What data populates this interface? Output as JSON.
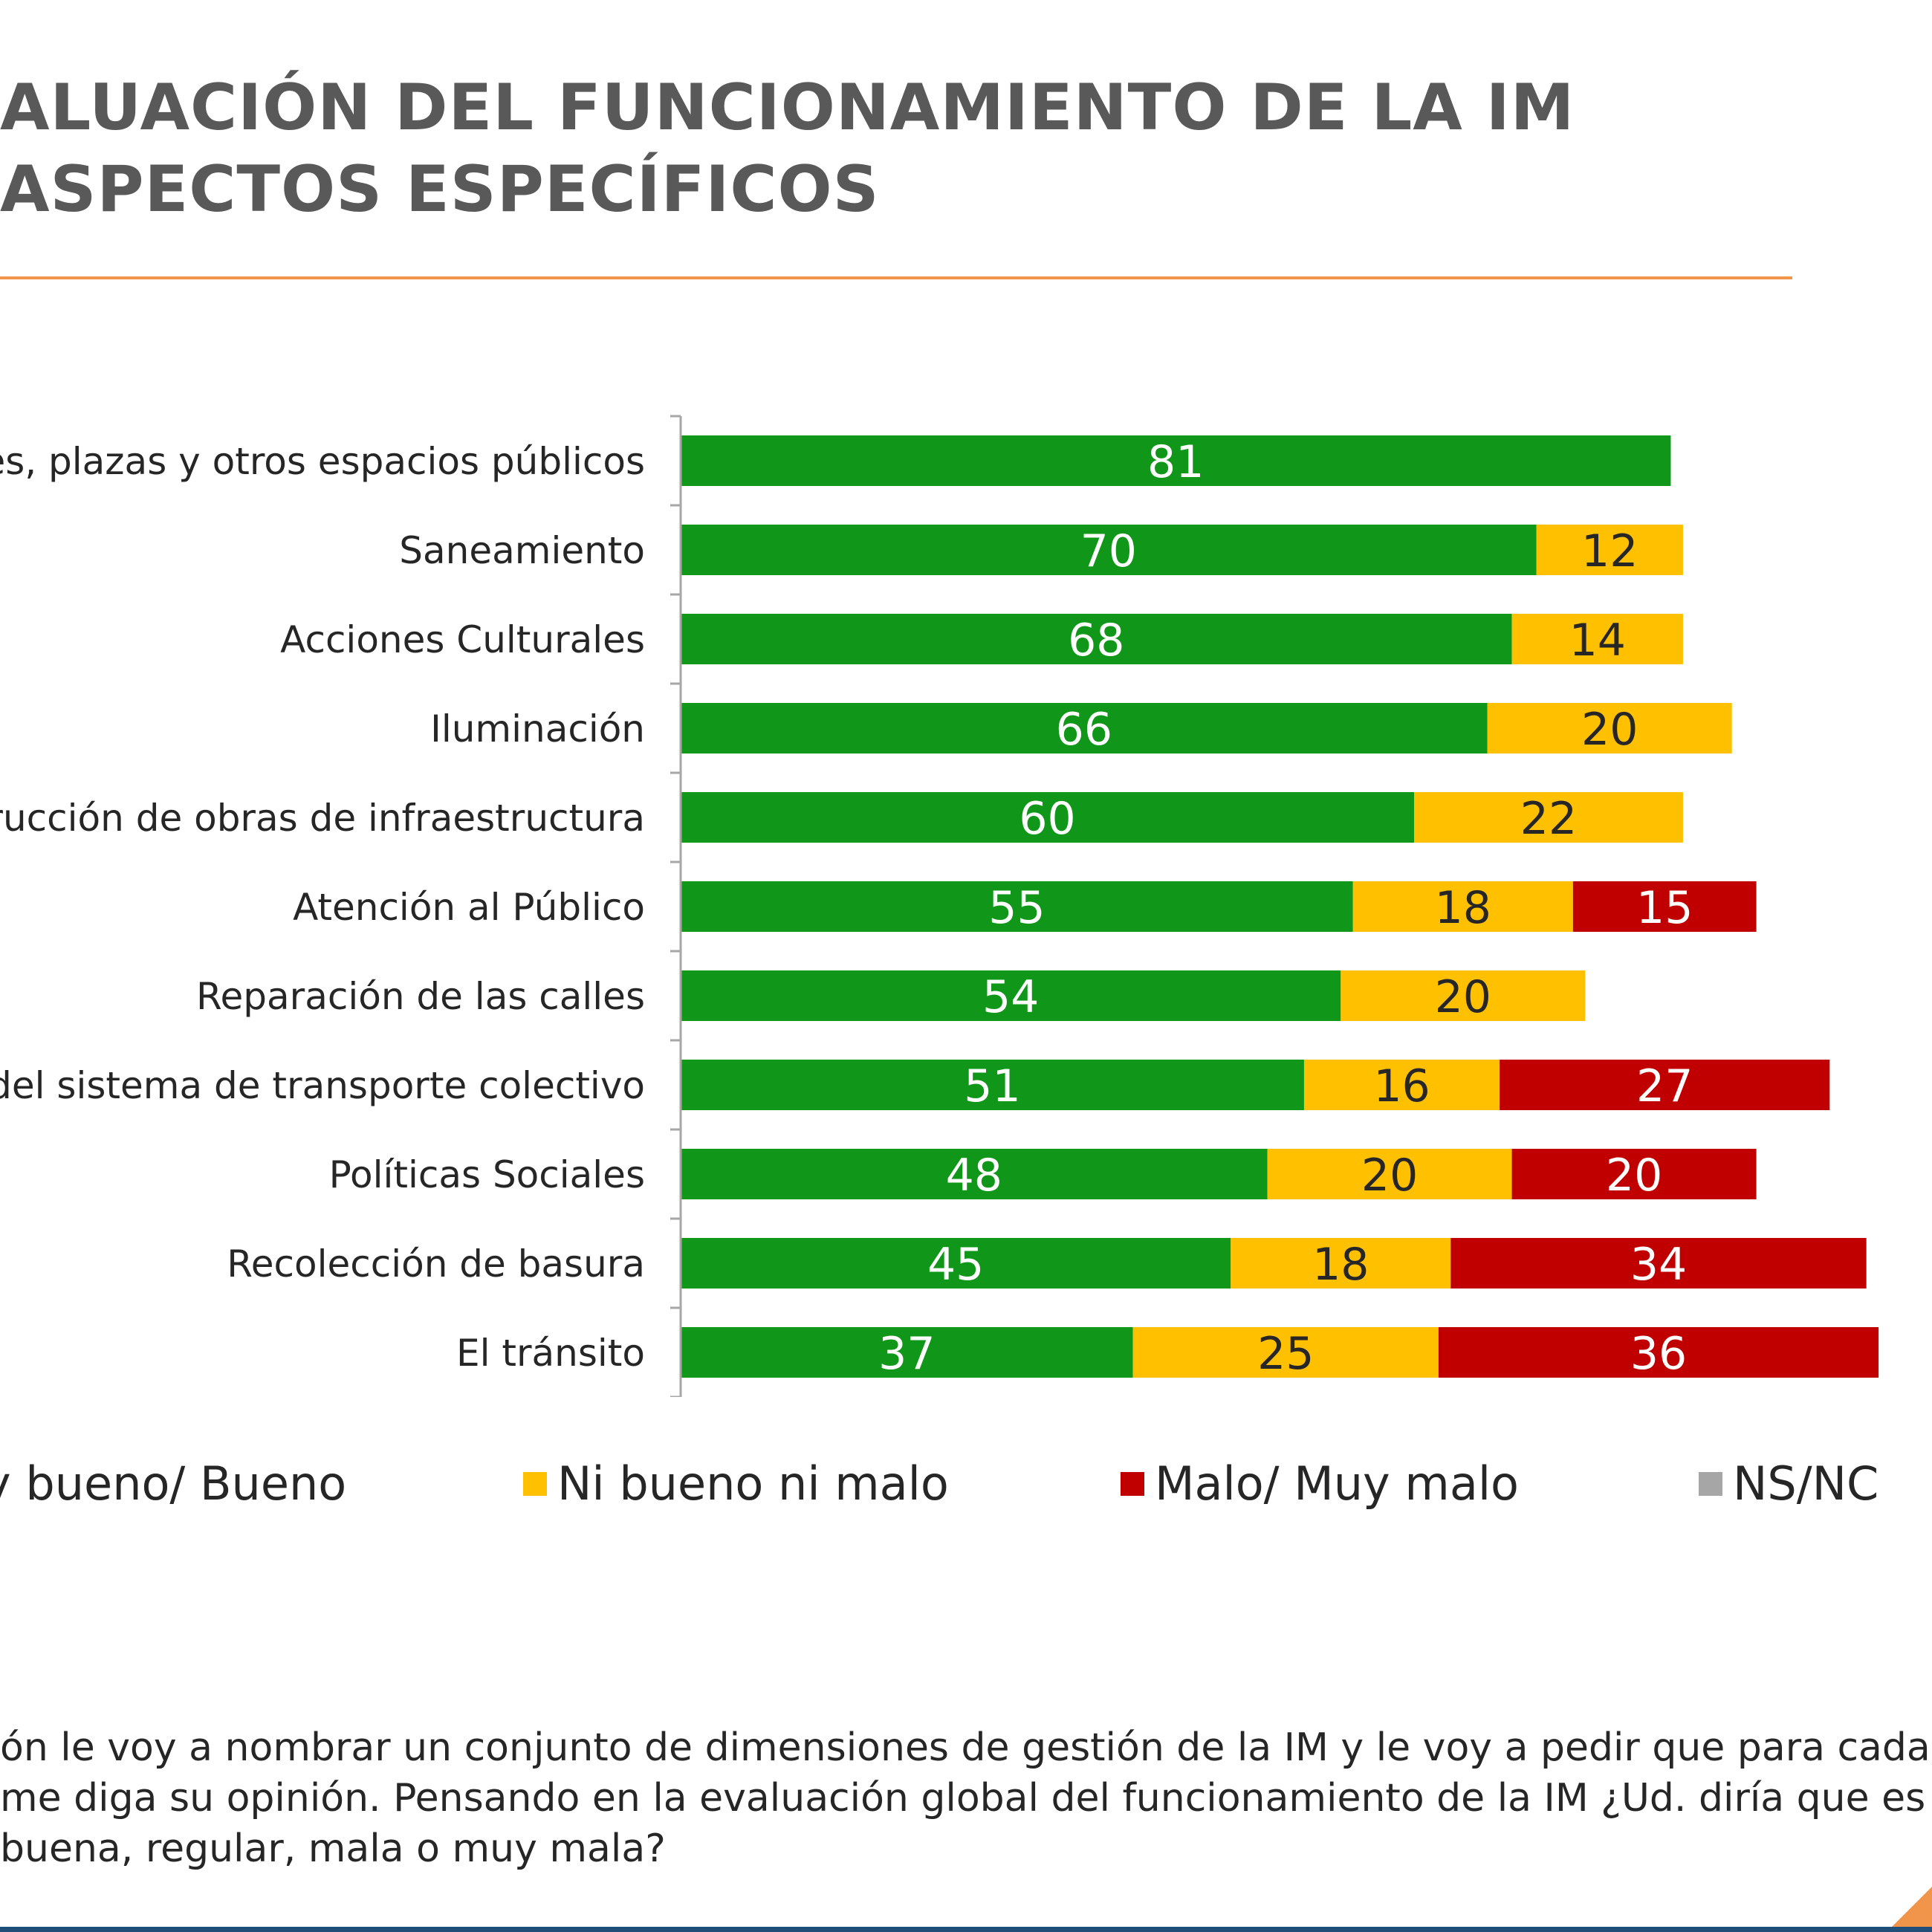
{
  "title": {
    "line1": "ALUACIÓN DEL FUNCIONAMIENTO DE LA IM",
    "line2": "ASPECTOS ESPECÍFICOS"
  },
  "chart_data": {
    "type": "bar",
    "orientation": "horizontal",
    "stacked": true,
    "categories": [
      "ues, plazas y otros espacios públicos",
      "Saneamiento",
      "Acciones Culturales",
      "Iluminación",
      "strucción de obras de infraestructura",
      "Atención al Público",
      "Reparación de las calles",
      "to del sistema de transporte colectivo",
      "Políticas Sociales",
      "Recolección de basura",
      "El tránsito"
    ],
    "series": [
      {
        "name": "y bueno/ Bueno",
        "color": "#109618",
        "values": [
          81,
          70,
          68,
          66,
          60,
          55,
          54,
          51,
          48,
          45,
          37
        ]
      },
      {
        "name": "Ni bueno ni malo",
        "color": "#ffc000",
        "values": [
          null,
          12,
          14,
          20,
          22,
          18,
          20,
          16,
          20,
          18,
          25
        ]
      },
      {
        "name": "Malo/ Muy malo",
        "color": "#c00000",
        "values": [
          null,
          null,
          null,
          null,
          null,
          15,
          null,
          27,
          20,
          34,
          36
        ]
      },
      {
        "name": "NS/NC",
        "color": "#a6a6a6",
        "values": [
          null,
          null,
          null,
          null,
          null,
          null,
          null,
          null,
          null,
          null,
          null
        ]
      }
    ],
    "data_labels": [
      [
        "81",
        "",
        "",
        ""
      ],
      [
        "70",
        "12",
        "",
        ""
      ],
      [
        "68",
        "14",
        "",
        ""
      ],
      [
        "66",
        "20",
        "",
        ""
      ],
      [
        "60",
        "22",
        "",
        ""
      ],
      [
        "55",
        "18",
        "15",
        ""
      ],
      [
        "54",
        "20",
        "",
        ""
      ],
      [
        "51",
        "16",
        "27",
        ""
      ],
      [
        "48",
        "20",
        "20",
        ""
      ],
      [
        "45",
        "18",
        "34",
        ""
      ],
      [
        "37",
        "25",
        "36",
        ""
      ]
    ],
    "legend_position": "bottom",
    "grid": false
  },
  "legend": [
    {
      "label": "y bueno/ Bueno",
      "color": "#109618"
    },
    {
      "label": "Ni bueno ni malo",
      "color": "#ffc000"
    },
    {
      "label": "Malo/ Muy malo",
      "color": "#c00000"
    },
    {
      "label": "NS/NC",
      "color": "#a6a6a6"
    }
  ],
  "question": {
    "line1": "ón le voy a nombrar un conjunto de dimensiones de gestión de la IM y le voy a pedir que para cada",
    "line2": "me diga su opinión. Pensando en la evaluación global del funcionamiento de la IM ¿Ud. diría que es",
    "line3": "buena, regular, mala o muy mala?"
  }
}
